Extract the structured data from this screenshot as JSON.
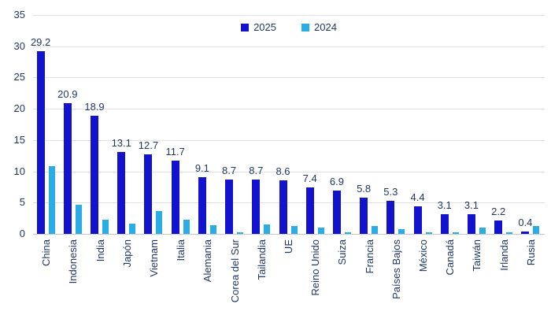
{
  "chart_data": {
    "type": "bar",
    "title": "",
    "categories": [
      "China",
      "Indonesia",
      "India",
      "Japón",
      "Vietnam",
      "Italia",
      "Alemania",
      "Corea del Sur",
      "Tailandia",
      "UE",
      "Reino Unido",
      "Suiza",
      "Francia",
      "Países Bajos",
      "México",
      "Canadá",
      "Taiwán",
      "Irlanda",
      "Rusia"
    ],
    "series": [
      {
        "name": "2025",
        "color": "#1212cf",
        "data_labels": true,
        "values": [
          29.2,
          20.9,
          18.9,
          13.1,
          12.7,
          11.7,
          9.1,
          8.7,
          8.7,
          8.6,
          7.4,
          6.9,
          5.8,
          5.3,
          4.4,
          3.1,
          3.1,
          2.2,
          0.4
        ]
      },
      {
        "name": "2024",
        "color": "#29ade4",
        "data_labels": false,
        "values": [
          10.8,
          4.6,
          2.3,
          1.6,
          3.7,
          2.3,
          1.4,
          0.2,
          1.5,
          1.2,
          1.0,
          0.2,
          1.3,
          0.7,
          0.3,
          0.2,
          1.0,
          0.2,
          1.3
        ]
      }
    ],
    "ylim": [
      0,
      35
    ],
    "ytick_step": 5,
    "yticks": [
      0,
      5,
      10,
      15,
      20,
      25,
      30,
      35
    ],
    "grid": true,
    "legend_position": "top-center",
    "xlabel": "",
    "ylabel": "",
    "text_color": "#1f3864",
    "gridline_color": "#e2e2e2",
    "axisline_color": "#c9c9c9",
    "background_color": "#ffffff"
  }
}
